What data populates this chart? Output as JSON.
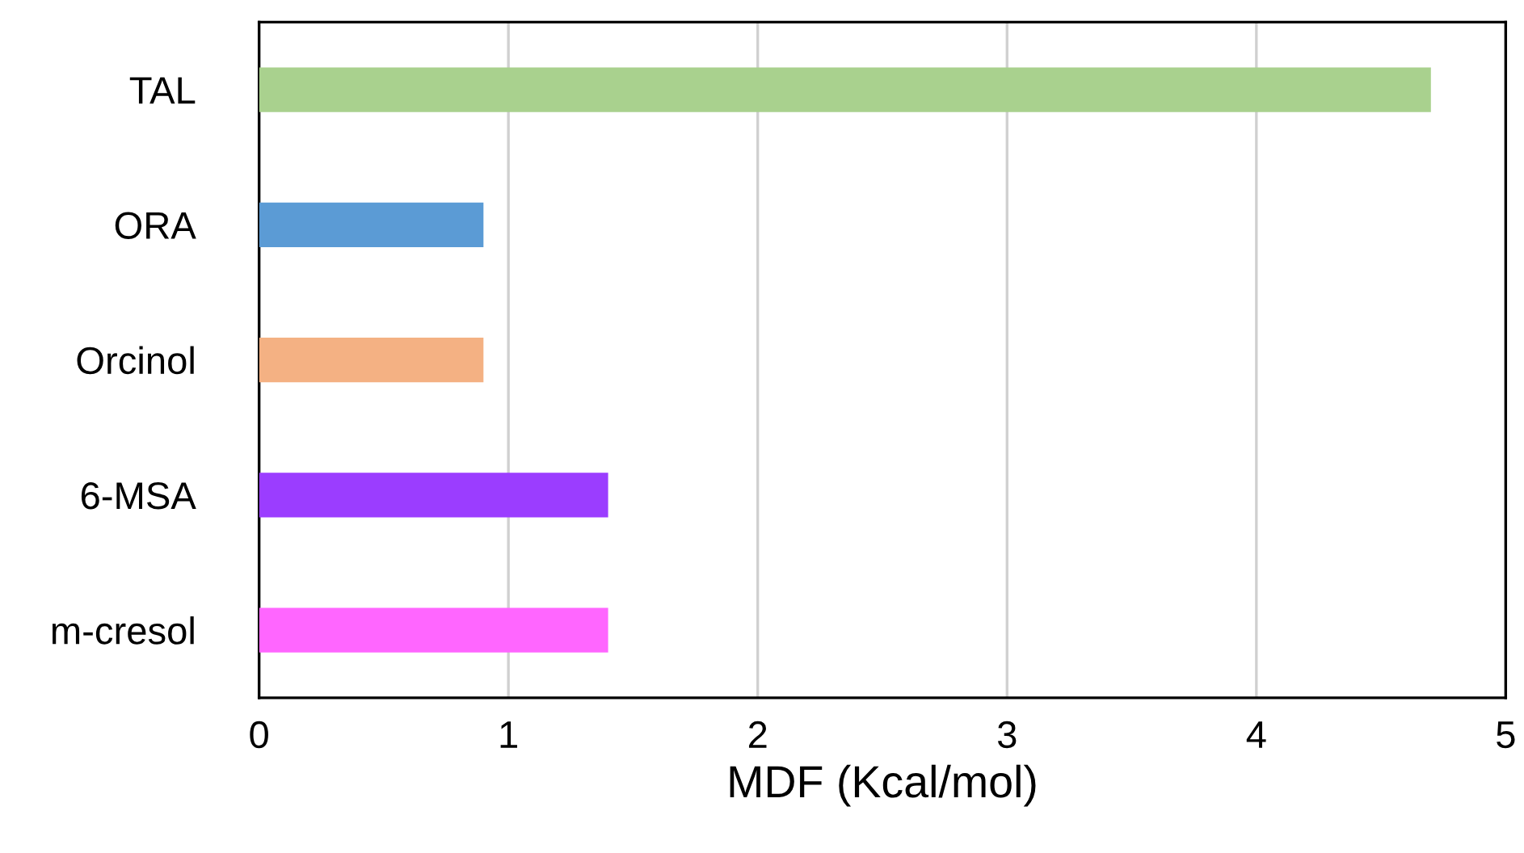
{
  "chart_data": {
    "type": "bar",
    "orientation": "horizontal",
    "xlabel": "MDF (Kcal/mol)",
    "categories": [
      "TAL",
      "ORA",
      "Orcinol",
      "6-MSA",
      "m-cresol"
    ],
    "values": [
      4.7,
      0.9,
      0.9,
      1.4,
      1.4
    ],
    "colors": [
      "#a9d18e",
      "#5b9bd5",
      "#f4b183",
      "#9b3dff",
      "#ff66ff"
    ],
    "xlim": [
      0,
      5
    ],
    "xticks": [
      0,
      1,
      2,
      3,
      4,
      5
    ],
    "grid": "x",
    "legend": false
  }
}
